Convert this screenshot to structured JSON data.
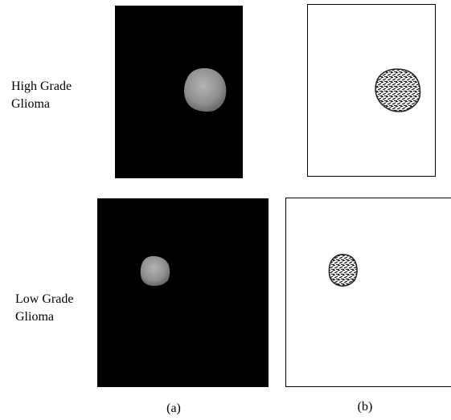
{
  "rows": [
    {
      "label_lines": [
        "High Grade",
        "Glioma"
      ]
    },
    {
      "label_lines": [
        "Low Grade",
        "Glioma"
      ]
    }
  ],
  "captions": [
    "(a)",
    "(b)"
  ]
}
